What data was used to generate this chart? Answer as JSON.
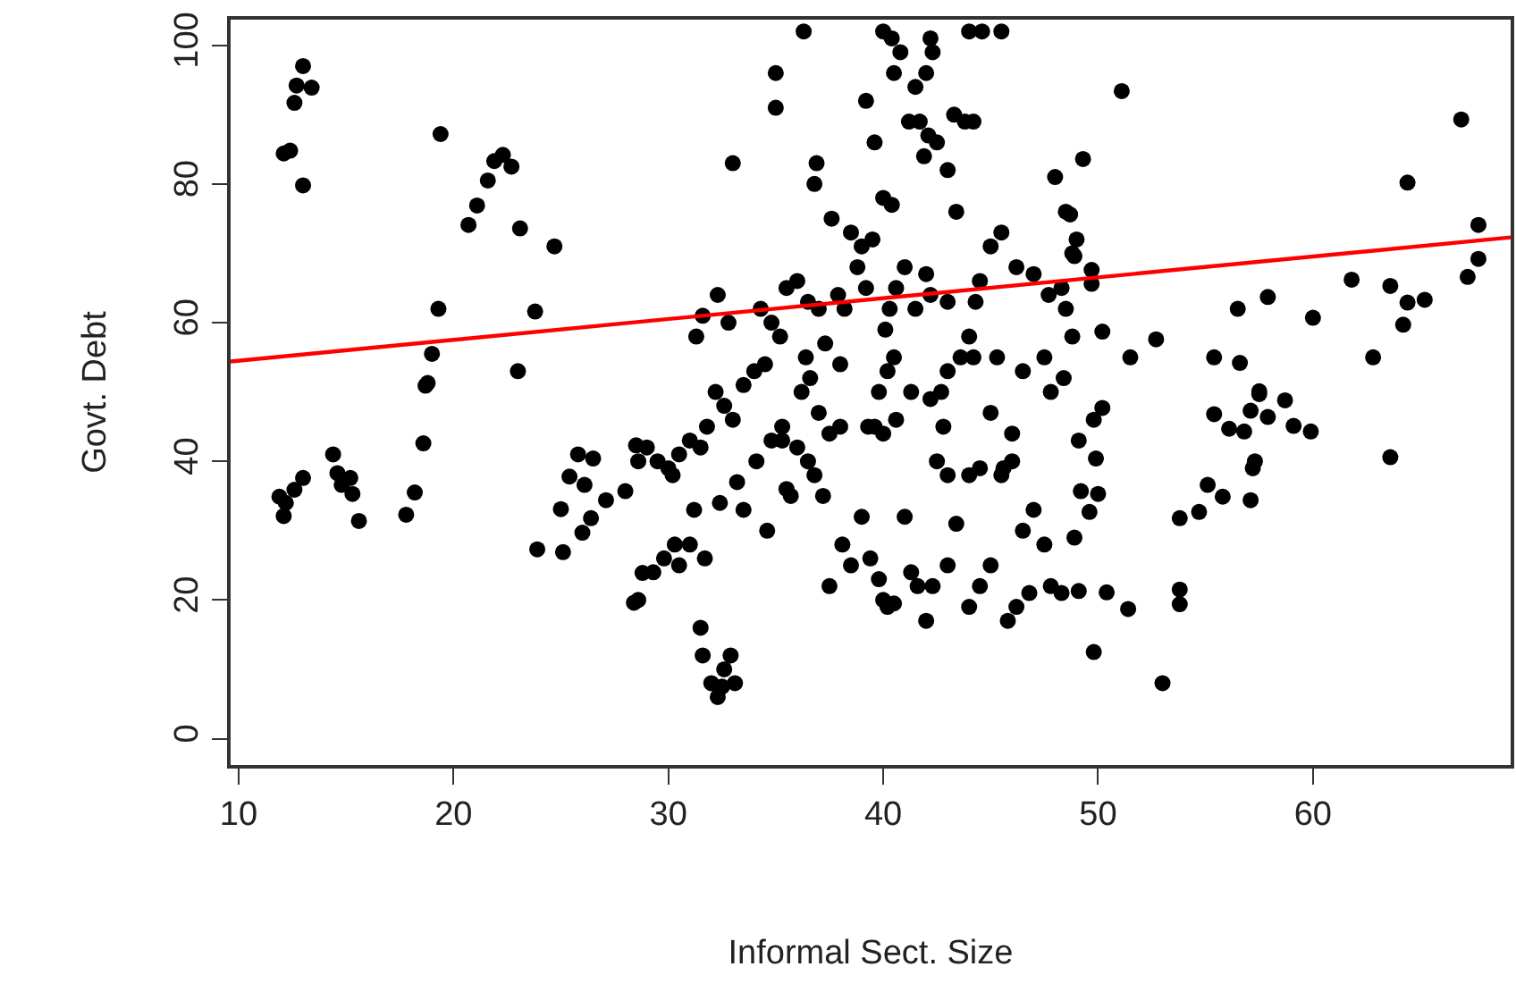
{
  "chart_data": {
    "type": "scatter",
    "xlabel": "Informal Sect. Size",
    "ylabel": "Govt. Debt",
    "xlim": [
      9.63,
      69.2
    ],
    "ylim": [
      -3.8,
      103.7
    ],
    "xticks": [
      10,
      20,
      30,
      40,
      50,
      60
    ],
    "yticks": [
      0,
      20,
      40,
      60,
      80,
      100
    ],
    "grid": false,
    "series": [
      {
        "marker": "circle",
        "color": "#000000",
        "x": [
          13.0,
          12.7,
          13.4,
          12.6,
          12.1,
          12.4,
          13.0,
          19.4,
          22.3,
          21.9,
          22.7,
          21.6,
          21.1,
          20.7,
          23.1,
          24.7,
          19.3,
          23.8,
          19.0,
          23.0,
          18.8,
          14.4,
          11.9,
          12.2,
          12.1,
          12.6,
          13.0,
          14.6,
          15.2,
          14.8,
          15.3,
          15.6,
          17.8,
          18.2,
          18.6,
          18.7,
          23.9,
          25.1,
          25.0,
          25.8,
          26.5,
          25.4,
          26.1,
          26.0,
          26.4,
          27.1,
          28.0,
          28.5,
          28.6,
          28.8,
          28.4,
          29.0,
          29.5,
          30.0,
          30.5,
          31.0,
          31.5,
          30.2,
          29.8,
          30.3,
          31.0,
          30.5,
          31.2,
          29.3,
          28.6,
          31.7,
          31.5,
          31.6,
          32.0,
          32.3,
          32.6,
          32.9,
          33.1,
          32.5,
          31.8,
          32.2,
          32.6,
          33.0,
          33.5,
          34.0,
          34.5,
          33.2,
          34.1,
          34.8,
          35.3,
          35.5,
          36.0,
          36.5,
          34.3,
          34.8,
          35.2,
          35.5,
          36.0,
          31.3,
          31.6,
          32.3,
          32.8,
          33.0,
          32.4,
          33.5,
          34.6,
          35.7,
          36.2,
          36.6,
          37.0,
          37.5,
          38.0,
          36.8,
          37.2,
          37.5,
          38.1,
          38.5,
          39.0,
          39.4,
          39.8,
          40.0,
          40.2,
          40.5,
          41.0,
          41.3,
          41.6,
          42.0,
          42.3,
          43.0,
          43.4,
          44.0,
          44.5,
          45.0,
          45.5,
          45.8,
          46.2,
          46.8,
          47.5,
          47.8,
          48.3,
          36.3,
          35.0,
          35.0,
          39.2,
          39.6,
          40.0,
          40.4,
          40.8,
          40.5,
          41.5,
          42.0,
          42.3,
          41.2,
          41.7,
          42.1,
          42.5,
          41.9,
          43.0,
          43.3,
          43.8,
          44.2,
          44.0,
          44.6,
          45.5,
          42.2,
          43.4,
          36.9,
          36.8,
          37.6,
          38.5,
          39.0,
          39.5,
          40.0,
          40.4,
          38.8,
          39.2,
          40.6,
          41.0,
          42.0,
          42.2,
          43.0,
          44.3,
          45.0,
          45.5,
          46.2,
          47.0,
          47.7,
          48.3,
          48.8,
          49.0,
          48.5,
          48.0,
          48.8,
          48.5,
          47.5,
          47.8,
          48.4,
          46.0,
          45.6,
          44.5,
          44.0,
          43.0,
          42.5,
          42.8,
          42.2,
          41.3,
          40.6,
          40.0,
          39.6,
          39.3,
          39.8,
          40.2,
          40.5,
          40.1,
          41.5,
          43.0,
          43.6,
          44.2,
          44.0,
          45.3,
          46.5,
          47.0,
          46.5,
          38.0,
          37.3,
          37.0,
          36.5,
          38.2,
          36.4,
          35.3,
          37.9,
          40.3,
          44.5,
          42.7,
          45.0,
          46.0,
          51.1,
          49.3,
          66.9,
          64.4,
          67.7,
          67.7,
          67.2,
          61.8,
          63.6,
          64.4,
          65.2,
          64.2,
          62.8,
          60.0,
          57.9,
          56.5,
          55.4,
          56.6,
          52.7,
          51.5,
          50.2,
          49.7,
          49.7,
          48.9,
          48.7,
          57.5,
          63.6,
          57.5,
          58.7,
          55.4,
          56.1,
          56.8,
          57.1,
          57.9,
          59.1,
          59.9,
          57.3,
          57.2,
          57.1,
          55.1,
          55.8,
          54.7,
          53.8,
          53.8,
          53.8,
          53.0,
          49.8,
          49.1,
          50.4,
          51.4,
          48.9,
          49.6,
          50.0,
          49.2,
          49.9,
          49.1,
          49.8,
          50.2
        ],
        "values": [
          97.0,
          94.2,
          93.9,
          91.7,
          84.4,
          84.8,
          79.8,
          87.2,
          84.2,
          83.3,
          82.5,
          80.5,
          76.9,
          74.1,
          73.6,
          71.0,
          62.0,
          61.6,
          55.5,
          53.0,
          51.3,
          41.0,
          34.9,
          34.0,
          32.1,
          35.9,
          37.6,
          38.3,
          37.6,
          36.6,
          35.3,
          31.4,
          32.3,
          35.5,
          42.6,
          50.9,
          27.3,
          26.9,
          33.1,
          41.0,
          40.4,
          37.8,
          36.6,
          29.7,
          31.8,
          34.4,
          35.7,
          42.3,
          40.0,
          23.9,
          19.6,
          42,
          40,
          39,
          41,
          43,
          42,
          38,
          26,
          28,
          28,
          25,
          33,
          24,
          20,
          26,
          16,
          12,
          8,
          6,
          10,
          12,
          8,
          7.5,
          45,
          50,
          48,
          46,
          51,
          53,
          54,
          37,
          40,
          43,
          45,
          36,
          42,
          40,
          62,
          60,
          58,
          65,
          66,
          58,
          61,
          64,
          60,
          83,
          34,
          33,
          30,
          35,
          50,
          52,
          47,
          44,
          45,
          38,
          35,
          22,
          28,
          25,
          32,
          26,
          23,
          20,
          19,
          19.5,
          32,
          24,
          22,
          17,
          22,
          25,
          31,
          19,
          22,
          25,
          38,
          17,
          19,
          21,
          28,
          22,
          21,
          102,
          96,
          91,
          92,
          86,
          102,
          101,
          99,
          96,
          94,
          96,
          99,
          89,
          89,
          87,
          86,
          84,
          82,
          90,
          89,
          89,
          102,
          102,
          102,
          101,
          76,
          83,
          80,
          75,
          73,
          71,
          72,
          78,
          77,
          68,
          65,
          65,
          68,
          67,
          64,
          63,
          63,
          71,
          73,
          68,
          67,
          64,
          65,
          70,
          72,
          76,
          81,
          58,
          62,
          55,
          50,
          52,
          40,
          39,
          39,
          38,
          38,
          40,
          45,
          49,
          50,
          46,
          44,
          45,
          45,
          50,
          53,
          55,
          59,
          62,
          53,
          55,
          55,
          58,
          55,
          53,
          33,
          30,
          54,
          57,
          62,
          63,
          62,
          55,
          43,
          64,
          62,
          66,
          50,
          47,
          44,
          93.4,
          83.6,
          89.3,
          80.2,
          74.1,
          69.2,
          66.6,
          66.2,
          65.3,
          62.9,
          63.3,
          59.7,
          55.0,
          60.7,
          63.7,
          62.0,
          55.0,
          54.2,
          57.6,
          55.0,
          58.7,
          65.6,
          67.6,
          69.6,
          75.6,
          50.1,
          40.6,
          49.7,
          48.8,
          46.8,
          44.7,
          44.3,
          47.3,
          46.4,
          45.1,
          44.3,
          40.0,
          39.0,
          34.4,
          36.6,
          34.9,
          32.7,
          31.8,
          21.5,
          19.4,
          8.0,
          12.5,
          21.3,
          21.1,
          18.7,
          29.0,
          32.7,
          35.3,
          35.7,
          40.4,
          43.0,
          46.0,
          47.7
        ]
      },
      {
        "type": "line",
        "marker": "none",
        "color": "#ff0000",
        "x": [
          9.63,
          69.2
        ],
        "values": [
          54.4,
          72.3
        ]
      }
    ]
  }
}
